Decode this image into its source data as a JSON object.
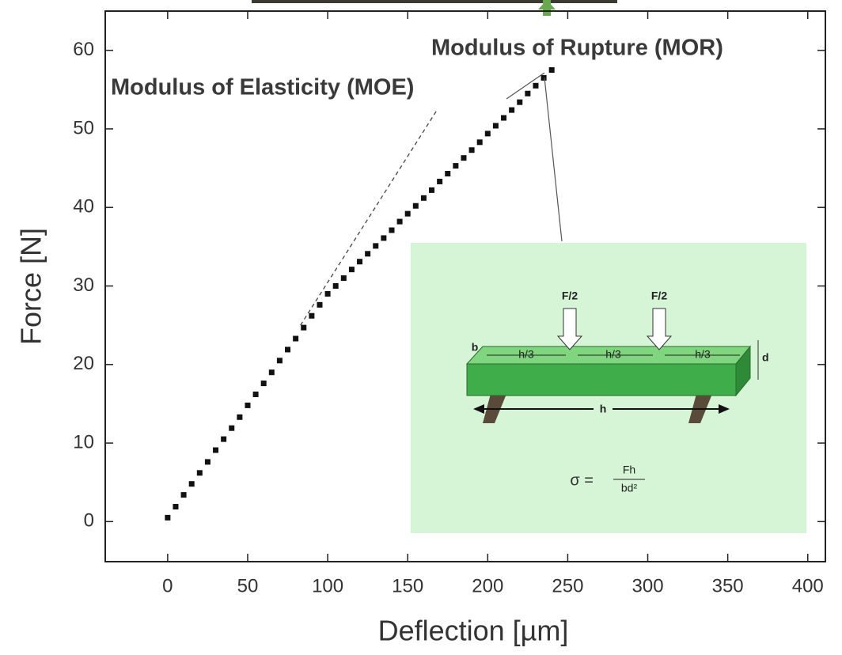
{
  "chart_data": {
    "type": "scatter",
    "x_label": "Deflection [µm]",
    "y_label": "Force [N]",
    "annotations": [
      "Modulus of Rupture (MOR)",
      "Modulus of Elasticity (MOE)"
    ],
    "xlim": [
      -39,
      411
    ],
    "ylim": [
      -5.1,
      65
    ],
    "xticks": [
      0,
      50,
      100,
      150,
      200,
      250,
      300,
      350,
      400
    ],
    "yticks": [
      0,
      10,
      20,
      30,
      40,
      50,
      60
    ],
    "color": "#111111",
    "x": [
      0,
      5,
      10,
      15,
      20,
      25,
      30,
      35,
      40,
      45,
      50,
      55,
      60,
      65,
      70,
      75,
      80,
      85,
      90,
      95,
      100,
      105,
      110,
      115,
      120,
      125,
      130,
      135,
      140,
      145,
      150,
      155,
      160,
      165,
      170,
      175,
      180,
      185,
      190,
      195,
      200,
      205,
      210,
      215,
      220,
      225,
      230,
      235,
      240
    ],
    "values": [
      0.5,
      1.9,
      3.4,
      4.8,
      6.2,
      7.6,
      9.1,
      10.5,
      11.9,
      13.3,
      14.8,
      16.2,
      17.6,
      19.0,
      20.5,
      21.9,
      23.3,
      24.7,
      26.2,
      27.6,
      29.0,
      30.0,
      31.0,
      32.1,
      33.1,
      34.1,
      35.1,
      36.1,
      37.1,
      38.2,
      39.2,
      40.2,
      41.2,
      42.2,
      43.3,
      44.3,
      45.3,
      46.3,
      47.3,
      48.3,
      49.4,
      50.4,
      51.4,
      52.4,
      53.4,
      54.5,
      55.5,
      56.5,
      57.5
    ],
    "fit_line": {
      "x": [
        83,
        168
      ],
      "y": [
        25,
        52.3
      ]
    }
  },
  "inset": {
    "force_left": "F/2",
    "force_right": "F/2",
    "third_1": "h/3",
    "third_2": "h/3",
    "third_3": "h/3",
    "width": "b",
    "depth": "d",
    "span": "h",
    "formula_lhs": "σ =",
    "formula_numerator": "Fh",
    "formula_denominator": "bd²"
  }
}
